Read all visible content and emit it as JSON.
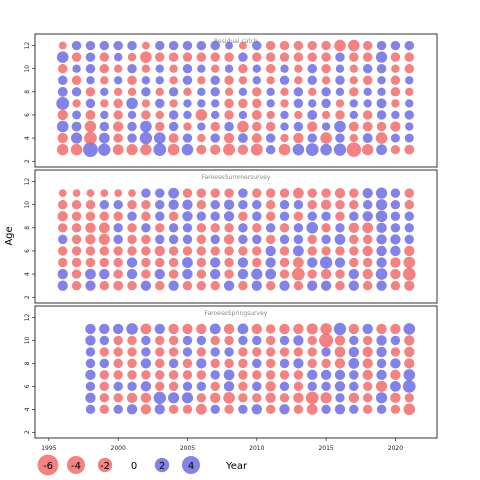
{
  "chart_data": {
    "type": "scatter",
    "subtype": "bubble-residual",
    "ylabel": "Age",
    "xlim": [
      1994,
      2023
    ],
    "x_ticks": [
      1995,
      2000,
      2005,
      2010,
      2015,
      2020
    ],
    "x_tick_labels": [
      "1995",
      "2000",
      "2005",
      "2010",
      "2015",
      "2020"
    ],
    "colors": {
      "positive": "#6060e0",
      "negative": "#f06060"
    },
    "panels": [
      {
        "title": "Residual catch",
        "ylim": [
          1.5,
          13
        ],
        "y_ticks": [
          2,
          4,
          6,
          8,
          10,
          12
        ],
        "y_tick_labels": [
          "2",
          "4",
          "6",
          "8",
          "10",
          "12"
        ],
        "years": [
          1996,
          1997,
          1998,
          1999,
          2000,
          2001,
          2002,
          2003,
          2004,
          2005,
          2006,
          2007,
          2008,
          2009,
          2010,
          2011,
          2012,
          2013,
          2014,
          2015,
          2016,
          2017,
          2018,
          2019,
          2020,
          2021
        ],
        "ages": [
          3,
          4,
          5,
          6,
          7,
          8,
          9,
          10,
          11,
          12
        ],
        "residuals": [
          [
            -2.5,
            -2.6,
            4.5,
            3.0,
            -2.2,
            -2.4,
            -2.5,
            3.2,
            -2.6,
            2.6,
            -1.8,
            -2.0,
            -2.8,
            -2.0,
            -2.8,
            1.6,
            -2.6,
            2.6,
            3.2,
            2.6,
            3.0,
            -4.3,
            -2.5,
            2.2,
            -1.5,
            -1.8
          ],
          [
            -2.0,
            2.4,
            -3.2,
            2.2,
            -1.6,
            1.6,
            3.0,
            2.6,
            -1.8,
            1.6,
            -1.2,
            1.6,
            -2.0,
            1.8,
            -1.8,
            1.6,
            -1.2,
            -2.0,
            1.6,
            -2.6,
            1.6,
            -1.2,
            1.8,
            -2.6,
            1.4,
            1.4
          ],
          [
            2.6,
            1.8,
            -2.6,
            1.6,
            -2.0,
            1.6,
            2.6,
            -1.6,
            1.6,
            -1.2,
            1.2,
            -1.6,
            1.6,
            -2.6,
            -1.6,
            -1.6,
            1.2,
            1.6,
            -2.0,
            1.2,
            2.6,
            -1.8,
            -1.8,
            -1.6,
            -2.0,
            1.2
          ],
          [
            -2.0,
            1.4,
            -1.8,
            1.2,
            -1.6,
            1.2,
            -1.6,
            -1.2,
            1.6,
            1.2,
            -2.6,
            1.2,
            -1.6,
            1.2,
            -1.8,
            -1.2,
            1.2,
            -1.2,
            1.8,
            -1.2,
            -1.6,
            1.2,
            -1.6,
            1.6,
            1.2,
            1.6
          ],
          [
            3.3,
            -1.2,
            1.6,
            -1.2,
            -1.6,
            2.6,
            -1.2,
            1.6,
            -1.2,
            1.2,
            1.2,
            1.2,
            -1.6,
            -1.6,
            -1.6,
            1.2,
            -1.2,
            1.6,
            1.2,
            1.6,
            -1.2,
            1.2,
            1.2,
            1.8,
            -1.2,
            1.2
          ],
          [
            1.8,
            1.6,
            -1.6,
            1.2,
            -1.2,
            -1.2,
            1.6,
            -1.2,
            1.6,
            -1.2,
            1.2,
            1.6,
            -1.2,
            1.2,
            -1.6,
            1.2,
            -1.2,
            1.6,
            -1.2,
            1.6,
            1.2,
            -1.6,
            1.2,
            1.2,
            -1.6,
            -1.2
          ],
          [
            1.6,
            -1.6,
            1.2,
            -1.2,
            1.2,
            -1.6,
            1.2,
            1.2,
            -1.2,
            1.6,
            -1.2,
            1.6,
            -1.6,
            -1.2,
            1.2,
            -1.2,
            1.6,
            -1.2,
            1.6,
            -1.2,
            1.6,
            -1.2,
            -1.6,
            1.2,
            -1.6,
            1.2
          ],
          [
            -1.6,
            1.2,
            1.6,
            -1.6,
            -1.2,
            1.6,
            -1.2,
            1.2,
            -1.2,
            1.6,
            1.2,
            -1.2,
            1.2,
            -1.6,
            1.2,
            -1.6,
            1.2,
            -1.2,
            1.6,
            -1.6,
            1.2,
            -1.2,
            1.6,
            1.6,
            -1.2,
            -1.6
          ],
          [
            2.6,
            -1.6,
            1.6,
            -1.6,
            1.2,
            -1.2,
            -2.6,
            -1.6,
            -1.6,
            -1.6,
            -1.6,
            -1.6,
            -1.6,
            1.6,
            -1.6,
            -1.6,
            -1.6,
            -1.6,
            -1.6,
            -1.6,
            1.6,
            -1.6,
            -1.6,
            2.4,
            -1.6,
            -1.6
          ],
          [
            -1.0,
            1.6,
            1.6,
            1.6,
            1.6,
            1.6,
            -1.0,
            1.6,
            1.6,
            1.6,
            1.6,
            1.6,
            1.0,
            -1.0,
            1.6,
            -1.6,
            -1.6,
            -1.6,
            -1.6,
            -1.6,
            -2.6,
            -2.6,
            -1.6,
            1.6,
            1.6,
            1.6
          ]
        ]
      },
      {
        "title": "FaroeseSummersurvey",
        "ylim": [
          1.5,
          13
        ],
        "y_ticks": [
          2,
          4,
          6,
          8,
          10,
          12
        ],
        "y_tick_labels": [
          "2",
          "4",
          "6",
          "8",
          "10",
          "12"
        ],
        "years": [
          1996,
          1997,
          1998,
          1999,
          2000,
          2001,
          2002,
          2003,
          2004,
          2005,
          2006,
          2007,
          2008,
          2009,
          2010,
          2011,
          2012,
          2013,
          2014,
          2015,
          2016,
          2017,
          2018,
          2019,
          2020,
          2021
        ],
        "ages": [
          3,
          4,
          5,
          6,
          7,
          8,
          9,
          10,
          11
        ],
        "residuals": [
          [
            2.0,
            -1.6,
            2.0,
            -1.6,
            -1.8,
            -1.6,
            2.0,
            -1.6,
            2.0,
            -1.6,
            -1.6,
            -1.6,
            2.0,
            -1.6,
            2.0,
            -1.6,
            2.0,
            -1.6,
            2.0,
            2.0,
            -1.6,
            2.0,
            -1.6,
            2.0,
            -1.6,
            -2.0
          ],
          [
            2.0,
            -1.6,
            2.2,
            2.0,
            -1.6,
            2.0,
            -1.6,
            2.0,
            -1.6,
            2.0,
            -1.6,
            2.0,
            -1.6,
            2.0,
            2.4,
            2.2,
            -1.6,
            -3.2,
            -1.6,
            -2.0,
            -1.6,
            2.0,
            -2.0,
            2.6,
            -2.0,
            -3.2
          ],
          [
            -1.6,
            -1.6,
            -1.6,
            -1.6,
            -1.6,
            2.0,
            -1.6,
            -1.6,
            -1.6,
            2.2,
            -1.6,
            2.0,
            -1.6,
            2.0,
            -1.6,
            2.0,
            -1.6,
            -2.2,
            2.0,
            3.0,
            2.0,
            -1.6,
            -1.6,
            2.0,
            -2.0,
            -2.6
          ],
          [
            -1.6,
            -1.6,
            -1.6,
            -1.6,
            -1.6,
            -1.6,
            -1.6,
            -2.0,
            -1.6,
            -1.6,
            -1.6,
            -1.6,
            -1.6,
            -1.6,
            -1.6,
            2.0,
            -1.6,
            2.2,
            -1.6,
            -1.6,
            -1.6,
            -1.6,
            -2.0,
            2.0,
            2.0,
            -2.0
          ],
          [
            1.6,
            -1.6,
            -2.0,
            -2.4,
            1.6,
            -1.6,
            -1.6,
            1.6,
            1.6,
            1.6,
            -1.6,
            1.6,
            -2.0,
            1.6,
            1.6,
            -1.6,
            1.6,
            1.6,
            -1.6,
            1.6,
            2.2,
            -1.6,
            -1.6,
            2.0,
            2.0,
            1.6
          ],
          [
            -1.6,
            -1.6,
            -2.0,
            -2.2,
            1.6,
            -1.6,
            1.6,
            -1.6,
            1.6,
            1.6,
            -1.6,
            -1.6,
            -1.6,
            1.6,
            -1.6,
            1.6,
            -1.6,
            1.6,
            2.6,
            -1.6,
            1.6,
            -2.0,
            -2.2,
            2.0,
            1.6,
            1.6
          ],
          [
            -2.0,
            -1.6,
            -1.6,
            -1.6,
            -1.6,
            1.6,
            -1.6,
            1.6,
            -1.6,
            2.0,
            1.6,
            1.6,
            2.0,
            -1.6,
            1.6,
            -1.6,
            1.6,
            -1.6,
            1.6,
            1.6,
            -1.6,
            1.6,
            2.0,
            2.6,
            1.6,
            1.6
          ],
          [
            -1.6,
            -1.6,
            -1.6,
            1.6,
            1.6,
            -1.6,
            -1.6,
            1.6,
            2.0,
            2.0,
            -1.6,
            1.6,
            2.0,
            1.6,
            1.6,
            -1.6,
            1.6,
            1.6,
            -1.6,
            -2.0,
            -1.6,
            -1.6,
            1.6,
            2.4,
            1.6,
            -1.6
          ],
          [
            -1.0,
            -1.0,
            -1.0,
            -1.0,
            -1.0,
            -1.0,
            1.6,
            1.6,
            2.2,
            -1.6,
            -1.6,
            -1.6,
            -1.6,
            1.6,
            -1.6,
            -1.6,
            -1.6,
            -2.2,
            -1.6,
            -1.6,
            -2.0,
            -1.6,
            2.0,
            2.4,
            1.6,
            -1.6
          ]
        ]
      },
      {
        "title": "FaroeseSpringsurvey",
        "ylim": [
          1.5,
          13
        ],
        "y_ticks": [
          2,
          4,
          6,
          8,
          10,
          12
        ],
        "y_tick_labels": [
          "2",
          "4",
          "6",
          "8",
          "10",
          "12"
        ],
        "years": [
          1998,
          1999,
          2000,
          2001,
          2002,
          2003,
          2004,
          2005,
          2006,
          2007,
          2008,
          2009,
          2010,
          2011,
          2012,
          2013,
          2014,
          2015,
          2016,
          2017,
          2018,
          2019,
          2020,
          2021
        ],
        "ages": [
          4,
          5,
          6,
          7,
          8,
          9,
          10,
          11
        ],
        "residuals": [
          [
            1.6,
            -1.6,
            1.6,
            2.0,
            -2.0,
            2.0,
            -1.6,
            -1.6,
            -2.2,
            1.6,
            -1.6,
            1.6,
            2.0,
            -1.6,
            2.0,
            -1.6,
            -2.2,
            1.6,
            2.0,
            1.6,
            -1.6,
            1.6,
            -1.6,
            -2.6
          ],
          [
            2.0,
            -1.6,
            -1.6,
            -2.0,
            -2.0,
            3.0,
            2.4,
            2.4,
            -1.6,
            -2.0,
            -2.6,
            -1.6,
            -1.6,
            -2.0,
            -1.6,
            -2.0,
            -3.2,
            -2.4,
            1.6,
            -2.0,
            -1.6,
            2.4,
            -2.0,
            -1.6
          ],
          [
            1.6,
            -1.6,
            1.6,
            1.6,
            2.0,
            -1.6,
            -1.6,
            1.6,
            1.6,
            -1.6,
            2.0,
            -1.6,
            1.6,
            -2.0,
            1.6,
            -1.6,
            1.6,
            1.6,
            2.0,
            1.6,
            -1.6,
            -2.4,
            2.2,
            3.2
          ],
          [
            2.0,
            -1.6,
            -1.6,
            -1.6,
            -1.6,
            -1.6,
            -1.6,
            -1.6,
            -1.6,
            1.6,
            2.2,
            -1.6,
            -1.6,
            -1.6,
            -1.6,
            -1.6,
            2.0,
            2.0,
            2.0,
            1.6,
            -2.0,
            2.0,
            -2.0,
            2.6
          ],
          [
            1.6,
            1.6,
            -1.6,
            -1.6,
            2.0,
            -1.6,
            1.6,
            -1.6,
            2.0,
            -1.6,
            -1.6,
            -1.6,
            1.6,
            -1.6,
            1.6,
            2.0,
            -1.6,
            -1.6,
            -2.0,
            2.2,
            -2.0,
            1.6,
            2.0,
            -2.0
          ],
          [
            1.6,
            -1.6,
            -1.6,
            -1.6,
            1.6,
            -1.6,
            -1.6,
            1.6,
            -1.6,
            1.6,
            1.6,
            -1.6,
            -1.6,
            -1.6,
            -1.6,
            -1.6,
            -1.6,
            1.6,
            -2.2,
            2.0,
            -2.0,
            2.0,
            -1.6,
            -2.0
          ],
          [
            2.0,
            1.6,
            -1.6,
            -1.6,
            1.6,
            -1.6,
            -1.6,
            1.6,
            1.6,
            -1.6,
            -1.6,
            1.6,
            1.6,
            -1.6,
            1.6,
            2.0,
            -1.6,
            -4.0,
            -2.0,
            1.6,
            -1.6,
            2.0,
            1.6,
            -2.0
          ],
          [
            2.0,
            2.0,
            2.0,
            2.6,
            -2.2,
            2.0,
            -2.0,
            -2.0,
            -2.0,
            2.2,
            -2.0,
            2.2,
            -2.0,
            -1.6,
            -2.0,
            -2.0,
            -2.4,
            -2.6,
            3.0,
            -2.0,
            2.0,
            -2.0,
            -2.0,
            2.6
          ]
        ]
      }
    ],
    "legend": {
      "placement": "bottom",
      "values": [
        -6,
        -4,
        -2,
        0,
        2,
        4
      ],
      "labels": [
        "-6",
        "-4",
        "-2",
        "0",
        "2",
        "4"
      ],
      "title": "Year"
    }
  }
}
